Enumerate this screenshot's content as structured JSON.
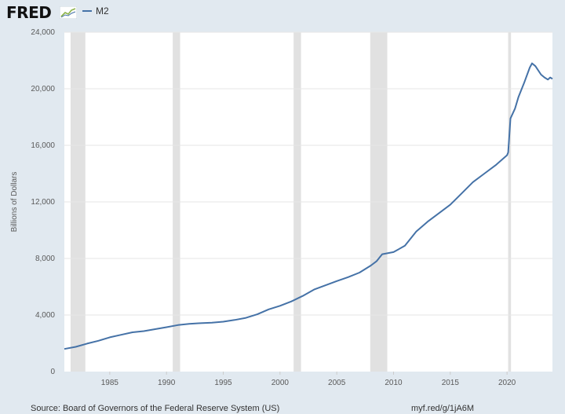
{
  "header": {
    "logo_text": "FRED",
    "legend_label": "M2",
    "series_color": "#4572a7"
  },
  "footer": {
    "source": "Source: Board of Governors of the Federal Reserve System (US)",
    "link": "myf.red/g/1jA6M"
  },
  "chart_data": {
    "type": "line",
    "ylabel": "Billions of Dollars",
    "xlim": [
      1981.0,
      2024.0
    ],
    "ylim": [
      0,
      24000
    ],
    "x_ticks": [
      1985,
      1990,
      1995,
      2000,
      2005,
      2010,
      2015,
      2020
    ],
    "x_tick_labels": [
      "1985",
      "1990",
      "1995",
      "2000",
      "2005",
      "2010",
      "2015",
      "2020"
    ],
    "y_ticks": [
      0,
      4000,
      8000,
      12000,
      16000,
      20000,
      24000
    ],
    "y_tick_labels": [
      "0",
      "4,000",
      "8,000",
      "12,000",
      "16,000",
      "20,000",
      "24,000"
    ],
    "grid": true,
    "legend": "top-left",
    "recessions": [
      [
        1981.55,
        1982.85
      ],
      [
        1990.55,
        1991.2
      ],
      [
        2001.2,
        2001.85
      ],
      [
        2007.95,
        2009.45
      ],
      [
        2020.1,
        2020.35
      ]
    ],
    "series": [
      {
        "name": "M2",
        "color": "#4572a7",
        "points": [
          [
            1981.0,
            1600
          ],
          [
            1982.0,
            1750
          ],
          [
            1983.0,
            1980
          ],
          [
            1984.0,
            2180
          ],
          [
            1985.0,
            2420
          ],
          [
            1986.0,
            2600
          ],
          [
            1987.0,
            2780
          ],
          [
            1988.0,
            2860
          ],
          [
            1989.0,
            3000
          ],
          [
            1990.0,
            3140
          ],
          [
            1991.0,
            3290
          ],
          [
            1992.0,
            3380
          ],
          [
            1993.0,
            3420
          ],
          [
            1994.0,
            3460
          ],
          [
            1995.0,
            3530
          ],
          [
            1996.0,
            3650
          ],
          [
            1997.0,
            3800
          ],
          [
            1998.0,
            4050
          ],
          [
            1999.0,
            4400
          ],
          [
            2000.0,
            4650
          ],
          [
            2001.0,
            4960
          ],
          [
            2002.0,
            5350
          ],
          [
            2003.0,
            5800
          ],
          [
            2004.0,
            6100
          ],
          [
            2005.0,
            6400
          ],
          [
            2006.0,
            6680
          ],
          [
            2007.0,
            7000
          ],
          [
            2008.0,
            7500
          ],
          [
            2008.5,
            7800
          ],
          [
            2009.0,
            8300
          ],
          [
            2010.0,
            8450
          ],
          [
            2011.0,
            8900
          ],
          [
            2012.0,
            9900
          ],
          [
            2013.0,
            10600
          ],
          [
            2014.0,
            11200
          ],
          [
            2015.0,
            11800
          ],
          [
            2016.0,
            12600
          ],
          [
            2017.0,
            13400
          ],
          [
            2018.0,
            14000
          ],
          [
            2019.0,
            14600
          ],
          [
            2020.0,
            15300
          ],
          [
            2020.1,
            15500
          ],
          [
            2020.3,
            17900
          ],
          [
            2020.7,
            18600
          ],
          [
            2021.0,
            19400
          ],
          [
            2021.5,
            20400
          ],
          [
            2022.0,
            21500
          ],
          [
            2022.2,
            21800
          ],
          [
            2022.5,
            21600
          ],
          [
            2023.0,
            21000
          ],
          [
            2023.3,
            20800
          ],
          [
            2023.6,
            20650
          ],
          [
            2023.8,
            20800
          ],
          [
            2024.0,
            20700
          ]
        ]
      }
    ]
  }
}
